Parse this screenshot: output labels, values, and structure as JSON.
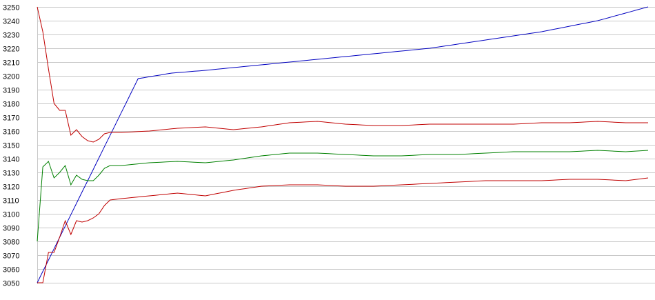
{
  "chart_data": {
    "type": "line",
    "title": "",
    "xlabel": "",
    "ylabel": "",
    "ylim": [
      3050,
      3250
    ],
    "y_ticks": [
      3050,
      3060,
      3070,
      3080,
      3090,
      3100,
      3110,
      3120,
      3130,
      3140,
      3150,
      3160,
      3170,
      3180,
      3190,
      3200,
      3210,
      3220,
      3230,
      3240,
      3250
    ],
    "grid": true,
    "legend": "none",
    "x_count": 110,
    "series": [
      {
        "color": "#0000c0",
        "points": [
          [
            0,
            3050
          ],
          [
            18,
            3198
          ],
          [
            24,
            3202
          ],
          [
            30,
            3204
          ],
          [
            40,
            3208
          ],
          [
            50,
            3212
          ],
          [
            60,
            3216
          ],
          [
            70,
            3220
          ],
          [
            80,
            3226
          ],
          [
            90,
            3232
          ],
          [
            100,
            3240
          ],
          [
            109,
            3250
          ]
        ]
      },
      {
        "color": "#c00000",
        "points": [
          [
            0,
            3250
          ],
          [
            1,
            3232
          ],
          [
            2,
            3205
          ],
          [
            3,
            3180
          ],
          [
            4,
            3175
          ],
          [
            5,
            3175
          ],
          [
            6,
            3157
          ],
          [
            7,
            3161
          ],
          [
            8,
            3156
          ],
          [
            9,
            3153
          ],
          [
            10,
            3152
          ],
          [
            11,
            3154
          ],
          [
            12,
            3158
          ],
          [
            13,
            3159
          ],
          [
            15,
            3159
          ],
          [
            20,
            3160
          ],
          [
            25,
            3162
          ],
          [
            30,
            3163
          ],
          [
            35,
            3161
          ],
          [
            40,
            3163
          ],
          [
            45,
            3166
          ],
          [
            50,
            3167
          ],
          [
            55,
            3165
          ],
          [
            60,
            3164
          ],
          [
            65,
            3164
          ],
          [
            70,
            3165
          ],
          [
            75,
            3165
          ],
          [
            80,
            3165
          ],
          [
            85,
            3165
          ],
          [
            90,
            3166
          ],
          [
            95,
            3166
          ],
          [
            100,
            3167
          ],
          [
            105,
            3166
          ],
          [
            109,
            3166
          ]
        ]
      },
      {
        "color": "#008000",
        "points": [
          [
            0,
            3080
          ],
          [
            1,
            3134
          ],
          [
            2,
            3138
          ],
          [
            3,
            3126
          ],
          [
            4,
            3130
          ],
          [
            5,
            3135
          ],
          [
            6,
            3121
          ],
          [
            7,
            3128
          ],
          [
            8,
            3125
          ],
          [
            9,
            3124
          ],
          [
            10,
            3124
          ],
          [
            11,
            3128
          ],
          [
            12,
            3133
          ],
          [
            13,
            3135
          ],
          [
            15,
            3135
          ],
          [
            20,
            3137
          ],
          [
            25,
            3138
          ],
          [
            30,
            3137
          ],
          [
            35,
            3139
          ],
          [
            40,
            3142
          ],
          [
            45,
            3144
          ],
          [
            50,
            3144
          ],
          [
            55,
            3143
          ],
          [
            60,
            3142
          ],
          [
            65,
            3142
          ],
          [
            70,
            3143
          ],
          [
            75,
            3143
          ],
          [
            80,
            3144
          ],
          [
            85,
            3145
          ],
          [
            90,
            3145
          ],
          [
            95,
            3145
          ],
          [
            100,
            3146
          ],
          [
            105,
            3145
          ],
          [
            109,
            3146
          ]
        ]
      },
      {
        "color": "#c00000",
        "points": [
          [
            0,
            3050
          ],
          [
            1,
            3050
          ],
          [
            2,
            3072
          ],
          [
            3,
            3072
          ],
          [
            4,
            3083
          ],
          [
            5,
            3095
          ],
          [
            6,
            3085
          ],
          [
            7,
            3095
          ],
          [
            8,
            3094
          ],
          [
            9,
            3095
          ],
          [
            10,
            3097
          ],
          [
            11,
            3100
          ],
          [
            12,
            3106
          ],
          [
            13,
            3110
          ],
          [
            15,
            3111
          ],
          [
            20,
            3113
          ],
          [
            25,
            3115
          ],
          [
            30,
            3113
          ],
          [
            35,
            3117
          ],
          [
            40,
            3120
          ],
          [
            45,
            3121
          ],
          [
            50,
            3121
          ],
          [
            55,
            3120
          ],
          [
            60,
            3120
          ],
          [
            65,
            3121
          ],
          [
            70,
            3122
          ],
          [
            75,
            3123
          ],
          [
            80,
            3124
          ],
          [
            85,
            3124
          ],
          [
            90,
            3124
          ],
          [
            95,
            3125
          ],
          [
            100,
            3125
          ],
          [
            105,
            3124
          ],
          [
            109,
            3126
          ]
        ]
      }
    ]
  }
}
